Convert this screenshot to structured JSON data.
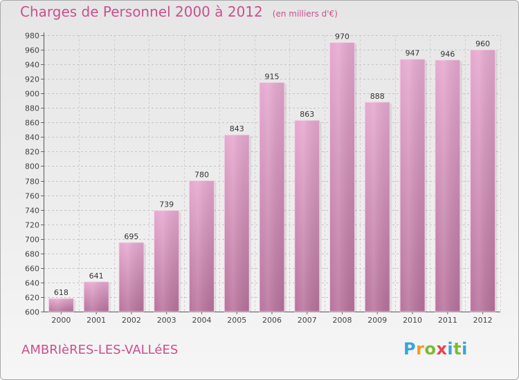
{
  "header": {
    "title": "Charges de Personnel 2000 à 2012",
    "subtitle": "(en milliers d'€)"
  },
  "footer": {
    "town": "AMBRIèRES-LES-VALLéES",
    "logo_text": "Proxiti"
  },
  "chart_data": {
    "type": "bar",
    "title": "Charges de Personnel 2000 à 2012",
    "subtitle": "(en milliers d'€)",
    "categories": [
      "2000",
      "2001",
      "2002",
      "2003",
      "2004",
      "2005",
      "2006",
      "2007",
      "2008",
      "2009",
      "2010",
      "2011",
      "2012"
    ],
    "values": [
      618,
      641,
      695,
      739,
      780,
      843,
      915,
      863,
      970,
      888,
      947,
      946,
      960
    ],
    "ylim": [
      600,
      980
    ],
    "yticks": [
      600,
      620,
      640,
      660,
      680,
      700,
      720,
      740,
      760,
      780,
      800,
      820,
      840,
      860,
      880,
      900,
      920,
      940,
      960,
      980
    ],
    "grid": true,
    "bar_color": "#d98fb8",
    "xlabel": "",
    "ylabel": ""
  }
}
